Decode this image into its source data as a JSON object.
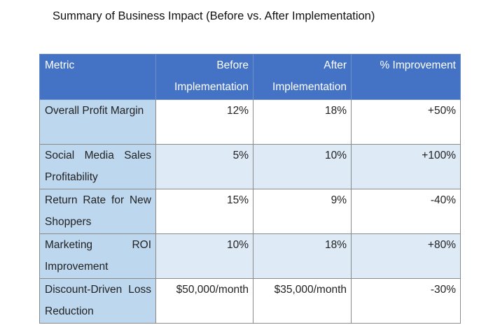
{
  "title": "Summary of Business Impact (Before vs. After Implementation)",
  "colors": {
    "header": "#4472C4",
    "metric_col": "#BDD7EE",
    "alt_row": "#DEEAF6"
  },
  "table": {
    "headers": [
      "Metric",
      "Before Implementation",
      "After Implementation",
      "% Improvement"
    ],
    "rows": [
      [
        "Overall Profit Margin",
        "12%",
        "18%",
        "+50%"
      ],
      [
        "Social Media Sales Profitability",
        "5%",
        "10%",
        "+100%"
      ],
      [
        "Return Rate for New Shoppers",
        "15%",
        "9%",
        "-40%"
      ],
      [
        "Marketing ROI Improvement",
        "10%",
        "18%",
        "+80%"
      ],
      [
        "Discount-Driven Loss Reduction",
        "$50,000/month",
        "$35,000/month",
        "-30%"
      ]
    ]
  }
}
